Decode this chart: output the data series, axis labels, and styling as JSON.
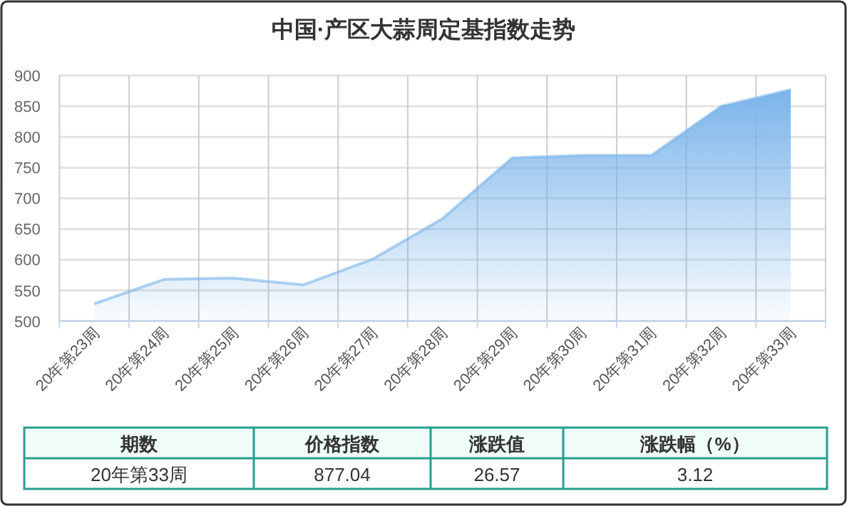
{
  "chart_data": [
    {
      "type": "area",
      "title": "中国·产区大蒜周定基指数走势",
      "categories": [
        "20年第23周",
        "20年第24周",
        "20年第25周",
        "20年第26周",
        "20年第27周",
        "20年第28周",
        "20年第29周",
        "20年第30周",
        "20年第31周",
        "20年第32周",
        "20年第33周"
      ],
      "series": [
        {
          "color": "#7ab4ea",
          "values": [
            528,
            568,
            570,
            559,
            601,
            667,
            766,
            770,
            770,
            850,
            877.04
          ]
        }
      ],
      "ylim": [
        500,
        900
      ],
      "yticks": [
        500,
        550,
        600,
        650,
        700,
        750,
        800,
        850,
        900
      ],
      "grid": true
    },
    {
      "type": "other",
      "annotations": [
        "期数",
        "价格指数",
        "涨跌值",
        "涨跌幅（%）",
        "20年第33周",
        "877.04",
        "26.57",
        "3.12"
      ]
    }
  ]
}
